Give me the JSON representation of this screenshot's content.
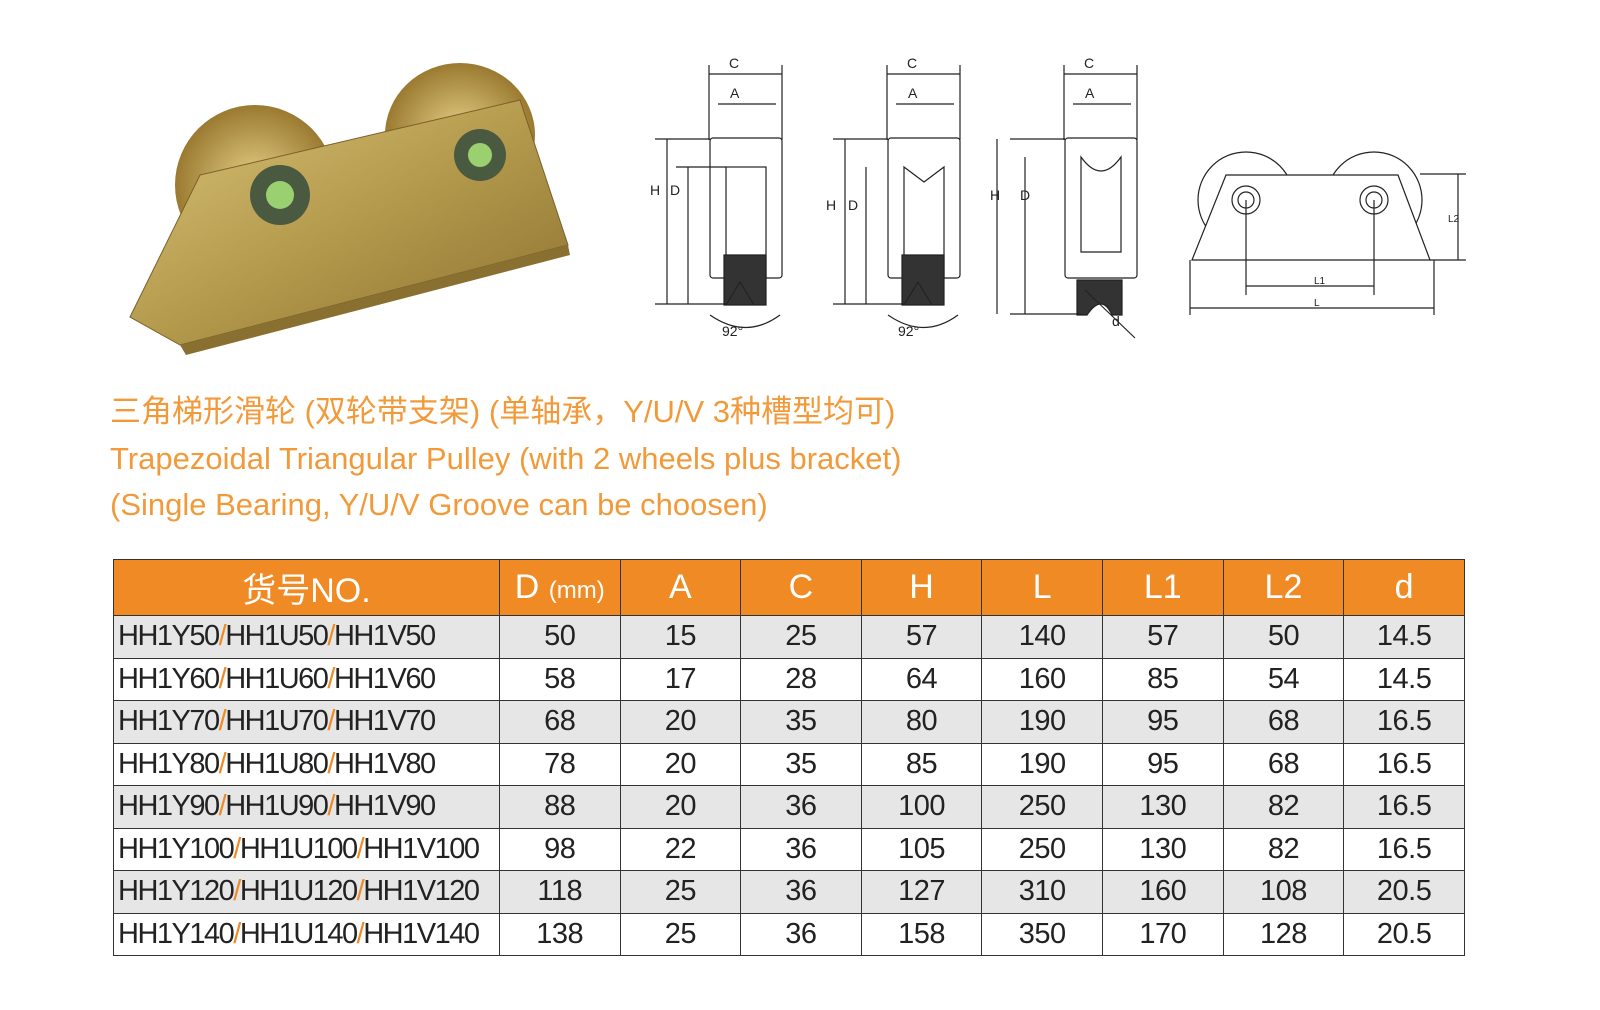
{
  "diagram_labels": {
    "C": "C",
    "A": "A",
    "H": "H",
    "D": "D",
    "angle": "92°",
    "d": "d",
    "L": "L",
    "L1": "L1",
    "L2": "L2"
  },
  "title": {
    "zh": "三角梯形滑轮 (双轮带支架) (单轴承，Y/U/V 3种槽型均可)",
    "en_line1": "Trapezoidal Triangular Pulley (with 2 wheels plus bracket)",
    "en_line2": "(Single Bearing, Y/U/V Groove can be choosen)"
  },
  "colors": {
    "accent": "#f08a24",
    "title": "#f29a3a",
    "row_shade": "#e6e6e6"
  },
  "table": {
    "headers": [
      "货号NO.",
      "D",
      "A",
      "C",
      "H",
      "L",
      "L1",
      "L2",
      "d"
    ],
    "unit": "(mm)",
    "separator": "/",
    "rows": [
      {
        "models": [
          "HH1Y50",
          "HH1U50",
          "HH1V50"
        ],
        "values": [
          "50",
          "15",
          "25",
          "57",
          "140",
          "57",
          "50",
          "14.5"
        ]
      },
      {
        "models": [
          "HH1Y60",
          "HH1U60",
          "HH1V60"
        ],
        "values": [
          "58",
          "17",
          "28",
          "64",
          "160",
          "85",
          "54",
          "14.5"
        ]
      },
      {
        "models": [
          "HH1Y70",
          "HH1U70",
          "HH1V70"
        ],
        "values": [
          "68",
          "20",
          "35",
          "80",
          "190",
          "95",
          "68",
          "16.5"
        ]
      },
      {
        "models": [
          "HH1Y80",
          "HH1U80",
          "HH1V80"
        ],
        "values": [
          "78",
          "20",
          "35",
          "85",
          "190",
          "95",
          "68",
          "16.5"
        ]
      },
      {
        "models": [
          "HH1Y90",
          "HH1U90",
          "HH1V90"
        ],
        "values": [
          "88",
          "20",
          "36",
          "100",
          "250",
          "130",
          "82",
          "16.5"
        ]
      },
      {
        "models": [
          "HH1Y100",
          "HH1U100",
          "HH1V100"
        ],
        "values": [
          "98",
          "22",
          "36",
          "105",
          "250",
          "130",
          "82",
          "16.5"
        ]
      },
      {
        "models": [
          "HH1Y120",
          "HH1U120",
          "HH1V120"
        ],
        "values": [
          "118",
          "25",
          "36",
          "127",
          "310",
          "160",
          "108",
          "20.5"
        ]
      },
      {
        "models": [
          "HH1Y140",
          "HH1U140",
          "HH1V140"
        ],
        "values": [
          "138",
          "25",
          "36",
          "158",
          "350",
          "170",
          "128",
          "20.5"
        ]
      }
    ]
  }
}
